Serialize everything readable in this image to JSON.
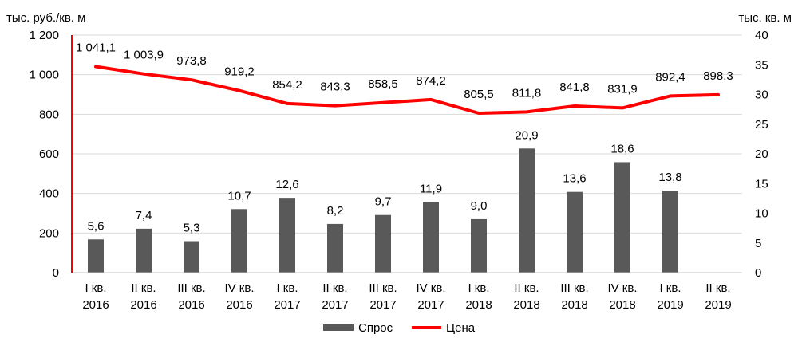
{
  "chart_data": {
    "type": "bar+line",
    "categories": [
      [
        "I кв.",
        "2016"
      ],
      [
        "II кв.",
        "2016"
      ],
      [
        "III кв.",
        "2016"
      ],
      [
        "IV кв.",
        "2016"
      ],
      [
        "I кв.",
        "2017"
      ],
      [
        "II кв.",
        "2017"
      ],
      [
        "III кв.",
        "2017"
      ],
      [
        "IV кв.",
        "2017"
      ],
      [
        "I кв.",
        "2018"
      ],
      [
        "II кв.",
        "2018"
      ],
      [
        "III кв.",
        "2018"
      ],
      [
        "IV кв.",
        "2018"
      ],
      [
        "I кв.",
        "2019"
      ],
      [
        "II кв.",
        "2019"
      ]
    ],
    "y_left_label": "тыс. руб./кв. м",
    "y_right_label": "тыс. кв. м",
    "y_left_lim": [
      0,
      1200
    ],
    "y_left_ticks": [
      0,
      200,
      400,
      600,
      800,
      1000,
      1200
    ],
    "y_left_tick_labels": [
      "0",
      "200",
      "400",
      "600",
      "800",
      "1 000",
      "1 200"
    ],
    "y_right_lim": [
      0,
      40
    ],
    "y_right_ticks": [
      0,
      5,
      10,
      15,
      20,
      25,
      30,
      35,
      40
    ],
    "y_right_tick_labels": [
      "0",
      "5",
      "10",
      "15",
      "20",
      "25",
      "30",
      "35",
      "40"
    ],
    "grid": true,
    "legend_position": "bottom-center",
    "series": [
      {
        "name": "Спрос",
        "type": "bar",
        "axis": "right",
        "color": "#595959",
        "values": [
          5.6,
          7.4,
          5.3,
          10.7,
          12.6,
          8.2,
          9.7,
          11.9,
          9.0,
          20.9,
          13.6,
          18.6,
          13.8,
          null
        ],
        "labels": [
          "5,6",
          "7,4",
          "5,3",
          "10,7",
          "12,6",
          "8,2",
          "9,7",
          "11,9",
          "9,0",
          "20,9",
          "13,6",
          "18,6",
          "13,8",
          ""
        ]
      },
      {
        "name": "Цена",
        "type": "line",
        "axis": "left",
        "color": "#ff0000",
        "values": [
          1041.1,
          1003.9,
          973.8,
          919.2,
          854.2,
          843.3,
          858.5,
          874.2,
          805.5,
          811.8,
          841.8,
          831.9,
          892.4,
          898.3
        ],
        "labels": [
          "1 041,1",
          "1 003,9",
          "973,8",
          "919,2",
          "854,2",
          "843,3",
          "858,5",
          "874,2",
          "805,5",
          "811,8",
          "841,8",
          "831,9",
          "892,4",
          "898,3"
        ]
      }
    ]
  }
}
